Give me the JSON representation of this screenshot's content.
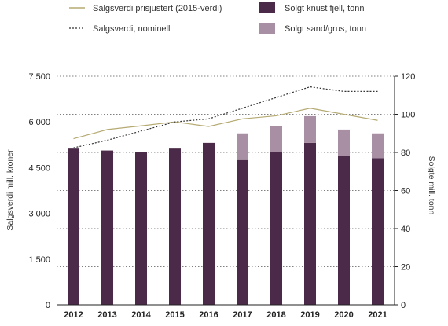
{
  "chart_data": {
    "type": "bar",
    "categories": [
      "2012",
      "2013",
      "2014",
      "2015",
      "2016",
      "2017",
      "2018",
      "2019",
      "2020",
      "2021"
    ],
    "series": [
      {
        "name": "Solgt knust fjell, tonn",
        "kind": "bar",
        "axis": "right",
        "color": "#4a2a48",
        "values": [
          82,
          81,
          80,
          82,
          85,
          76,
          80,
          85,
          78,
          77
        ]
      },
      {
        "name": "Solgt sand/grus, tonn",
        "kind": "bar",
        "axis": "right",
        "color": "#a98fa3",
        "values": [
          0,
          0,
          0,
          0,
          0,
          14,
          14,
          14,
          14,
          13
        ]
      },
      {
        "name": "Salgsverdi prisjustert (2015-verdi)",
        "kind": "line",
        "axis": "left",
        "color": "#b5aa72",
        "values": [
          5450,
          5750,
          5870,
          6000,
          5850,
          6100,
          6200,
          6450,
          6250,
          6050
        ]
      },
      {
        "name": "Salgsverdi, nominell",
        "kind": "line",
        "axis": "left",
        "color": "#333333",
        "dash": true,
        "values": [
          5150,
          5400,
          5700,
          6000,
          6100,
          6450,
          6800,
          7150,
          7000,
          7000
        ]
      }
    ],
    "ylabel": "Salgsverdi mill. kroner",
    "y2label": "Solgte mill. tonn",
    "ylim": [
      0,
      7500
    ],
    "y2lim": [
      0,
      120
    ],
    "yticks": [
      "0",
      "1 500",
      "3 000",
      "4 500",
      "6 000",
      "7 500"
    ],
    "y2ticks": [
      "0",
      "20",
      "40",
      "60",
      "80",
      "100",
      "120"
    ],
    "grid": true,
    "legend": {
      "position": "top",
      "items": [
        {
          "label": "Salgsverdi prisjustert (2015-verdi)",
          "symbol": "line",
          "color": "#b5aa72"
        },
        {
          "label": "Solgt knust fjell, tonn",
          "symbol": "box",
          "color": "#4a2a48"
        },
        {
          "label": "Salgsverdi, nominell",
          "symbol": "dash",
          "color": "#333333"
        },
        {
          "label": "Solgt sand/grus, tonn",
          "symbol": "box",
          "color": "#a98fa3"
        }
      ]
    }
  }
}
